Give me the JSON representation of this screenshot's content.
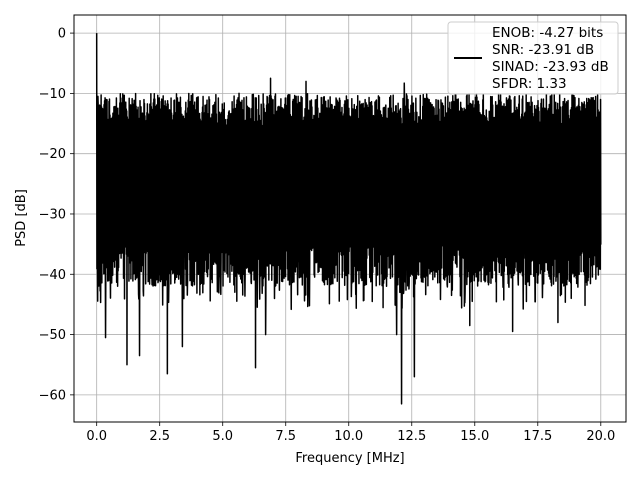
{
  "chart_data": {
    "type": "line",
    "title": "",
    "xlabel": "Frequency [MHz]",
    "ylabel": "PSD [dB]",
    "xlim": [
      -0.9,
      21.0
    ],
    "ylim": [
      -64.5,
      3.0
    ],
    "xticks": [
      0.0,
      2.5,
      5.0,
      7.5,
      10.0,
      12.5,
      15.0,
      17.5,
      20.0
    ],
    "xtick_labels": [
      "0.0",
      "2.5",
      "5.0",
      "7.5",
      "10.0",
      "12.5",
      "15.0",
      "17.5",
      "20.0"
    ],
    "yticks": [
      0,
      -10,
      -20,
      -30,
      -40,
      -50,
      -60
    ],
    "ytick_labels": [
      "0",
      "−10",
      "−20",
      "−30",
      "−40",
      "−50",
      "−60"
    ],
    "grid": true,
    "legend_position": "top-right",
    "series": [
      {
        "name": "ENOB: -4.27 bits\nSNR: -23.91 dB\nSINAD: -23.93 dB\nSFDR: 1.33",
        "color": "#000000",
        "x_range": [
          0,
          20
        ],
        "n_points": 2048,
        "typical_upper_envelope": -12,
        "typical_lower_envelope": -38,
        "peaks": [
          {
            "x": 0.0,
            "y": 0.0
          },
          {
            "x": 0.05,
            "y": -10.5
          },
          {
            "x": 6.9,
            "y": -7.5
          },
          {
            "x": 8.3,
            "y": -8.0
          },
          {
            "x": 12.2,
            "y": -8.3
          }
        ],
        "dips": [
          {
            "x": 0.35,
            "y": -50.5
          },
          {
            "x": 1.2,
            "y": -55.0
          },
          {
            "x": 1.7,
            "y": -53.5
          },
          {
            "x": 2.8,
            "y": -56.5
          },
          {
            "x": 3.4,
            "y": -52.0
          },
          {
            "x": 6.3,
            "y": -55.5
          },
          {
            "x": 6.7,
            "y": -50.0
          },
          {
            "x": 11.9,
            "y": -50.0
          },
          {
            "x": 12.1,
            "y": -61.5
          },
          {
            "x": 12.6,
            "y": -57.0
          },
          {
            "x": 14.8,
            "y": -48.5
          },
          {
            "x": 16.5,
            "y": -49.5
          },
          {
            "x": 18.3,
            "y": -48.0
          }
        ]
      }
    ],
    "legend_lines": [
      "ENOB: -4.27 bits",
      "SNR: -23.91 dB",
      "SINAD: -23.93 dB",
      "SFDR: 1.33"
    ]
  }
}
